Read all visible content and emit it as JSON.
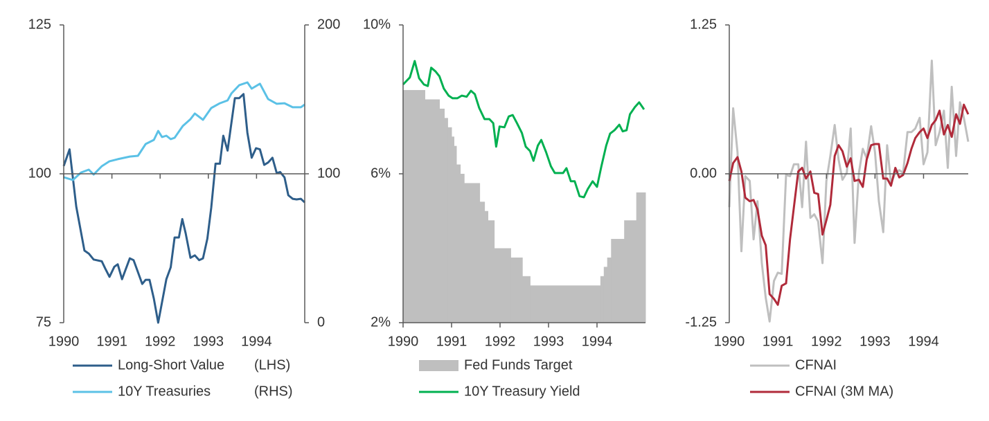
{
  "chart_data": [
    {
      "type": "line",
      "xlim": [
        1990,
        1995
      ],
      "xticks": [
        1990,
        1991,
        1992,
        1993,
        1994
      ],
      "ylim": [
        75,
        125
      ],
      "yticks": [
        75,
        100,
        125
      ],
      "y2lim": [
        0,
        200
      ],
      "y2ticks": [
        0,
        100,
        200
      ],
      "x_axis_at": 100,
      "series": [
        {
          "name": "Long-Short Value",
          "legend_note": "(LHS)",
          "color": "#2e5e8a",
          "x": [
            1990.0,
            1990.12,
            1990.26,
            1990.43,
            1990.52,
            1990.62,
            1990.79,
            1990.86,
            1990.95,
            1991.05,
            1991.12,
            1991.21,
            1991.37,
            1991.45,
            1991.63,
            1991.7,
            1991.78,
            1991.87,
            1991.96,
            1992.13,
            1992.22,
            1992.3,
            1992.39,
            1992.46,
            1992.53,
            1992.63,
            1992.72,
            1992.81,
            1992.89,
            1992.98,
            1993.06,
            1993.15,
            1993.24,
            1993.31,
            1993.4,
            1993.48,
            1993.55,
            1993.64,
            1993.73,
            1993.81,
            1993.9,
            1993.99,
            1994.07,
            1994.16,
            1994.24,
            1994.33,
            1994.42,
            1994.49,
            1994.58,
            1994.66,
            1994.75,
            1994.83,
            1994.92,
            1995.0
          ],
          "values": [
            101.3,
            104.1,
            94.5,
            87.1,
            86.6,
            85.6,
            85.3,
            84.1,
            82.7,
            84.4,
            84.8,
            82.3,
            85.8,
            85.5,
            81.5,
            82.2,
            82.2,
            79.0,
            75.0,
            82.3,
            84.3,
            89.3,
            89.3,
            92.4,
            90.0,
            85.9,
            86.3,
            85.5,
            85.8,
            89.1,
            94.3,
            101.7,
            101.7,
            106.4,
            103.9,
            108.6,
            112.7,
            112.7,
            113.4,
            106.9,
            102.7,
            104.3,
            104.1,
            101.5,
            101.9,
            102.7,
            100.1,
            100.3,
            99.4,
            96.4,
            95.8,
            95.7,
            95.8,
            95.2
          ]
        },
        {
          "name": "10Y Treasuries",
          "legend_note": "(RHS)",
          "color": "#5bc1e6",
          "axis": "y2",
          "x": [
            1990.0,
            1990.19,
            1990.36,
            1990.52,
            1990.62,
            1990.79,
            1990.95,
            1991.12,
            1991.37,
            1991.54,
            1991.7,
            1991.87,
            1991.96,
            1992.04,
            1992.13,
            1992.22,
            1992.3,
            1992.47,
            1992.63,
            1992.72,
            1992.89,
            1993.06,
            1993.24,
            1993.4,
            1993.48,
            1993.64,
            1993.81,
            1993.9,
            1994.07,
            1994.24,
            1994.42,
            1994.58,
            1994.75,
            1994.92,
            1995.0
          ],
          "values": [
            97.7,
            95.8,
            100.9,
            102.8,
            99.5,
            105.1,
            108.4,
            109.8,
            111.6,
            112.1,
            120,
            122.8,
            128.8,
            124.7,
            125.6,
            123.3,
            124.2,
            132.1,
            136.7,
            140.5,
            136.3,
            144.2,
            147.4,
            149.3,
            154,
            159.5,
            161.4,
            157.2,
            160.5,
            150.2,
            147,
            147.4,
            144.7,
            144.7,
            146.5
          ]
        }
      ]
    },
    {
      "type": "line",
      "xlim": [
        1990,
        1995
      ],
      "xticks": [
        1990,
        1991,
        1992,
        1993,
        1994
      ],
      "ylim": [
        2,
        10
      ],
      "yticks": [
        {
          "value": 2,
          "label": "2%"
        },
        {
          "value": 6,
          "label": "6%"
        },
        {
          "value": 10,
          "label": "10%"
        }
      ],
      "x_axis_at": 2,
      "series": [
        {
          "name": "Fed Funds Target",
          "style": "step-area",
          "color": "#bfbfbf",
          "x": [
            1990,
            1990.45,
            1990.75,
            1990.85,
            1990.92,
            1991.0,
            1991.05,
            1991.1,
            1991.18,
            1991.26,
            1991.58,
            1991.68,
            1991.75,
            1991.88,
            1992.22,
            1992.46,
            1992.62,
            1994.07,
            1994.14,
            1994.21,
            1994.29,
            1994.56,
            1994.81
          ],
          "values": [
            8.25,
            8.0,
            7.75,
            7.5,
            7.25,
            7.0,
            6.75,
            6.25,
            6.0,
            5.75,
            5.25,
            5.0,
            4.75,
            4.0,
            3.75,
            3.25,
            3.0,
            3.25,
            3.5,
            3.75,
            4.25,
            4.75,
            5.5
          ]
        },
        {
          "name": "10Y Treasury Yield",
          "color": "#00b050",
          "x": [
            1990.0,
            1990.14,
            1990.24,
            1990.33,
            1990.43,
            1990.51,
            1990.58,
            1990.67,
            1990.75,
            1990.84,
            1990.94,
            1991.02,
            1991.12,
            1991.21,
            1991.31,
            1991.4,
            1991.48,
            1991.57,
            1991.68,
            1991.78,
            1991.86,
            1991.92,
            1991.99,
            1992.09,
            1992.18,
            1992.26,
            1992.35,
            1992.45,
            1992.53,
            1992.62,
            1992.69,
            1992.78,
            1992.85,
            1992.95,
            1993.05,
            1993.13,
            1993.22,
            1993.3,
            1993.37,
            1993.46,
            1993.54,
            1993.64,
            1993.73,
            1993.81,
            1993.91,
            1994.0,
            1994.09,
            1994.19,
            1994.27,
            1994.36,
            1994.46,
            1994.53,
            1994.61,
            1994.68,
            1994.78,
            1994.87,
            1994.97
          ],
          "values": [
            8.4,
            8.59,
            9.03,
            8.57,
            8.4,
            8.36,
            8.85,
            8.75,
            8.62,
            8.29,
            8.1,
            8.03,
            8.03,
            8.1,
            8.07,
            8.23,
            8.14,
            7.77,
            7.47,
            7.47,
            7.36,
            6.73,
            7.27,
            7.25,
            7.54,
            7.58,
            7.36,
            7.1,
            6.73,
            6.61,
            6.35,
            6.76,
            6.91,
            6.58,
            6.2,
            6.02,
            6.02,
            6.02,
            6.15,
            5.8,
            5.8,
            5.4,
            5.37,
            5.59,
            5.8,
            5.65,
            6.2,
            6.76,
            7.08,
            7.17,
            7.32,
            7.14,
            7.17,
            7.6,
            7.79,
            7.92,
            7.73
          ]
        }
      ]
    },
    {
      "type": "line",
      "xlim": [
        1990,
        1994.92
      ],
      "xticks": [
        1990,
        1991,
        1992,
        1993,
        1994
      ],
      "ylim": [
        -1.25,
        1.25
      ],
      "yticks": [
        -1.25,
        {
          "value": 0,
          "label": "0.00"
        },
        1.25
      ],
      "x_axis_at": 0,
      "x": [
        1990,
        1990.08,
        1990.17,
        1990.25,
        1990.33,
        1990.42,
        1990.5,
        1990.58,
        1990.67,
        1990.75,
        1990.83,
        1990.92,
        1991,
        1991.08,
        1991.17,
        1991.25,
        1991.33,
        1991.42,
        1991.5,
        1991.58,
        1991.67,
        1991.75,
        1991.83,
        1991.92,
        1992,
        1992.08,
        1992.17,
        1992.25,
        1992.33,
        1992.42,
        1992.5,
        1992.58,
        1992.67,
        1992.75,
        1992.83,
        1992.92,
        1993,
        1993.08,
        1993.17,
        1993.25,
        1993.33,
        1993.42,
        1993.5,
        1993.58,
        1993.67,
        1993.75,
        1993.83,
        1993.92,
        1994,
        1994.08,
        1994.17,
        1994.25,
        1994.33,
        1994.42,
        1994.5,
        1994.58,
        1994.67,
        1994.75,
        1994.83,
        1994.92
      ],
      "series": [
        {
          "name": "CFNAI",
          "color": "#bfbfbf",
          "values": [
            -0.28,
            0.55,
            0.18,
            -0.65,
            -0.02,
            -0.06,
            -0.55,
            -0.23,
            -0.75,
            -1.04,
            -1.24,
            -0.9,
            -0.83,
            -0.84,
            -0.01,
            -0.02,
            0.08,
            0.08,
            -0.28,
            0.27,
            -0.37,
            -0.34,
            -0.4,
            -0.75,
            -0.06,
            0.15,
            0.41,
            0.12,
            -0.05,
            0.01,
            0.38,
            -0.58,
            0.01,
            0.21,
            0.13,
            0.4,
            0.18,
            -0.23,
            -0.49,
            0.24,
            -0.08,
            0.01,
            0.03,
            0.01,
            0.35,
            0.35,
            0.38,
            0.47,
            0.08,
            0.18,
            0.95,
            0.24,
            0.35,
            0.53,
            0.05,
            0.73,
            0.15,
            0.6,
            0.47,
            0.27
          ]
        },
        {
          "name": "CFNAI (3M MA)",
          "color": "#b02a3a",
          "values": [
            -0.06,
            0.09,
            0.14,
            0.02,
            -0.2,
            -0.23,
            -0.22,
            -0.3,
            -0.52,
            -0.6,
            -1.01,
            -1.05,
            -1.1,
            -0.94,
            -0.92,
            -0.55,
            -0.28,
            0.02,
            0.05,
            -0.04,
            0.02,
            -0.16,
            -0.17,
            -0.51,
            -0.39,
            -0.26,
            0.15,
            0.24,
            0.19,
            0.06,
            0.13,
            -0.06,
            -0.05,
            -0.11,
            0.12,
            0.24,
            0.25,
            0.25,
            -0.04,
            -0.04,
            -0.1,
            0.05,
            -0.03,
            -0.01,
            0.09,
            0.21,
            0.3,
            0.35,
            0.38,
            0.3,
            0.41,
            0.45,
            0.53,
            0.33,
            0.41,
            0.31,
            0.5,
            0.42,
            0.58,
            0.5
          ]
        }
      ]
    }
  ]
}
